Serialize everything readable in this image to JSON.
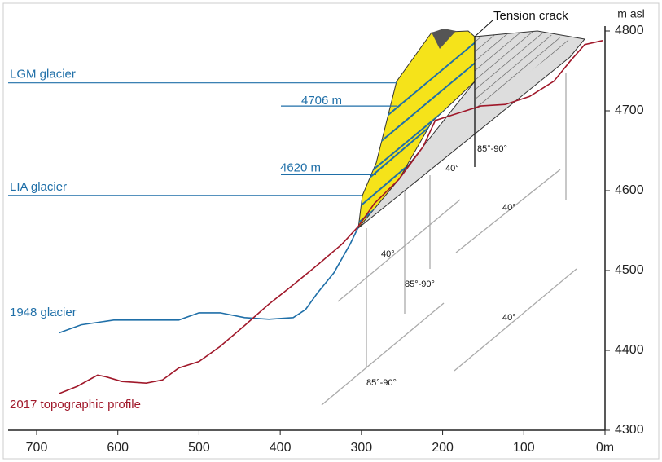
{
  "chart_data": {
    "type": "line",
    "y_axis_label": "m asl",
    "xlim": [
      700,
      0
    ],
    "ylim": [
      4300,
      4800
    ],
    "xticks": [
      700,
      600,
      500,
      400,
      300,
      200,
      100,
      {
        "value": 0,
        "label": "0m"
      }
    ],
    "yticks": [
      4300,
      4400,
      4500,
      4600,
      4700,
      4800
    ],
    "series": [
      {
        "name": "1948 glacier",
        "color": "#1f6fa8",
        "x": [
          672,
          645,
          605,
          565,
          525,
          500,
          474,
          444,
          414,
          384,
          369,
          354,
          334,
          314,
          304
        ],
        "values": [
          4422,
          4432,
          4438,
          4438,
          4438,
          4447,
          4447,
          4441,
          4439,
          4441,
          4451,
          4472,
          4497,
          4533,
          4554
        ]
      },
      {
        "name": "2017 topographic profile",
        "color": "#a0182a",
        "x": [
          672,
          650,
          625,
          615,
          595,
          565,
          545,
          525,
          500,
          474,
          444,
          414,
          384,
          354,
          324,
          304,
          284,
          254,
          224,
          209,
          184,
          153,
          123,
          93,
          63,
          43,
          25,
          3
        ],
        "values": [
          4346,
          4355,
          4369,
          4367,
          4361,
          4359,
          4363,
          4378,
          4386,
          4405,
          4431,
          4458,
          4482,
          4507,
          4533,
          4555,
          4584,
          4614,
          4655,
          4688,
          4696,
          4706,
          4708,
          4718,
          4737,
          4762,
          4783,
          4788
        ]
      }
    ],
    "reference_lines": [
      {
        "label": "LGM glacier",
        "value": 4735
      },
      {
        "label": "LIA glacier",
        "value": 4594
      },
      {
        "value": 4706,
        "label": "4706 m"
      },
      {
        "value": 4620,
        "label": "4620 m"
      }
    ],
    "annotations": [
      "Tension crack",
      "40°",
      "40°",
      "40°",
      "40°",
      "85°-90°",
      "85°-90°",
      "85°-90°"
    ]
  }
}
